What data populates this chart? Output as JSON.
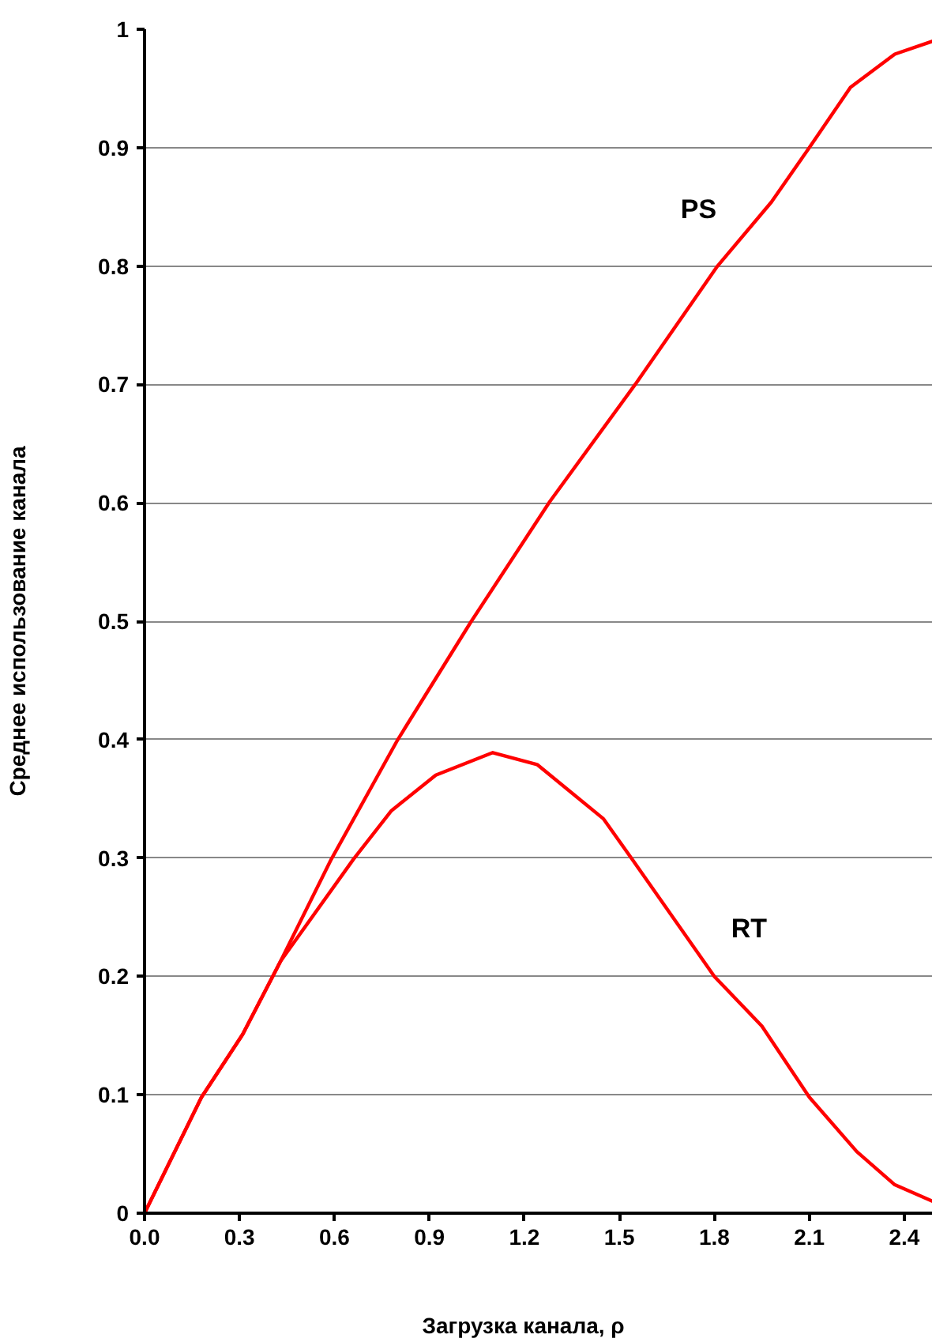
{
  "chart_data": {
    "type": "line",
    "xlabel": "Загрузка канала,      ρ",
    "ylabel": "Среднее использование канала",
    "xlim": [
      0,
      2.49
    ],
    "ylim": [
      0,
      1
    ],
    "xticks": [
      {
        "value": 0,
        "label": "0.0"
      },
      0.3,
      0.6,
      0.9,
      1.2,
      1.5,
      1.8,
      2.1,
      2.4
    ],
    "yticks": [
      0,
      0.1,
      0.2,
      0.3,
      0.4,
      0.5,
      0.6,
      0.7,
      0.8,
      0.9,
      1
    ],
    "grid": "y",
    "marker": "none",
    "line_style": "solid",
    "series": [
      {
        "name": "PS",
        "color": "#ff0000",
        "x": [
          0,
          0.18,
          0.31,
          0.43,
          0.59,
          0.8,
          1.03,
          1.28,
          1.55,
          1.81,
          1.98,
          2.1,
          2.23,
          2.37,
          2.49
        ],
        "values": [
          0,
          0.098,
          0.151,
          0.213,
          0.299,
          0.4,
          0.499,
          0.601,
          0.7,
          0.8,
          0.854,
          0.9,
          0.951,
          0.979,
          0.99
        ]
      },
      {
        "name": "RT",
        "color": "#ff0000",
        "x": [
          0,
          0.18,
          0.31,
          0.43,
          0.66,
          0.78,
          0.92,
          1.1,
          1.24,
          1.45,
          1.54,
          1.8,
          1.95,
          2.1,
          2.25,
          2.37,
          2.49
        ],
        "values": [
          0,
          0.098,
          0.151,
          0.213,
          0.299,
          0.34,
          0.37,
          0.389,
          0.379,
          0.333,
          0.299,
          0.2,
          0.158,
          0.098,
          0.052,
          0.024,
          0.01
        ]
      }
    ]
  }
}
